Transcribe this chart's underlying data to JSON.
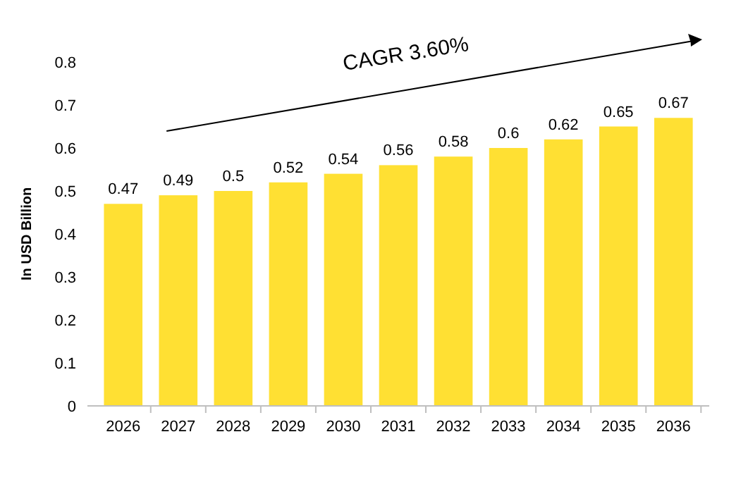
{
  "chart_data": {
    "type": "bar",
    "ylabel": "In USD Billion",
    "categories": [
      "2026",
      "2027",
      "2028",
      "2029",
      "2030",
      "2031",
      "2032",
      "2033",
      "2034",
      "2035",
      "2036"
    ],
    "values": [
      0.47,
      0.49,
      0.5,
      0.52,
      0.54,
      0.56,
      0.58,
      0.6,
      0.62,
      0.65,
      0.67
    ],
    "value_labels": [
      "0.47",
      "0.49",
      "0.5",
      "0.52",
      "0.54",
      "0.56",
      "0.58",
      "0.6",
      "0.62",
      "0.65",
      "0.67"
    ],
    "color": "#ffe033",
    "ylim": [
      0,
      0.8
    ],
    "yticks": [
      0,
      0.1,
      0.2,
      0.3,
      0.4,
      0.5,
      0.6,
      0.7,
      0.8
    ],
    "grid": false,
    "annotations": [
      "CAGR 3.60%"
    ]
  }
}
